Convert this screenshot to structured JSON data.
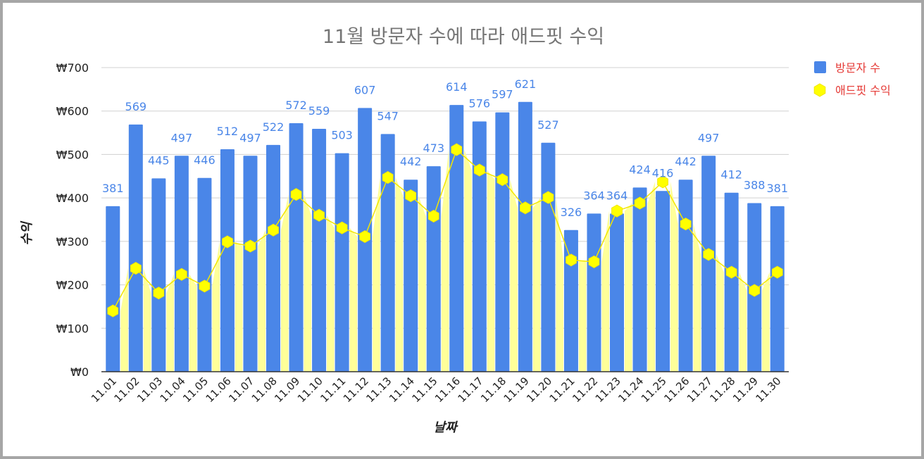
{
  "chart_data": {
    "type": "bar",
    "title": "11월 방문자 수에 따라 애드핏 수익",
    "xlabel": "날짜",
    "ylabel": "수익",
    "ylim": [
      0,
      700
    ],
    "yticks": [
      "₩0",
      "₩100",
      "₩200",
      "₩300",
      "₩400",
      "₩500",
      "₩600",
      "₩700"
    ],
    "ytick_values": [
      0,
      100,
      200,
      300,
      400,
      500,
      600,
      700
    ],
    "grid": true,
    "legend": "right",
    "categories": [
      "11.01",
      "11.02",
      "11.03",
      "11.04",
      "11.05",
      "11.06",
      "11.07",
      "11.08",
      "11.09",
      "11.10",
      "11.11",
      "11.12",
      "11.13",
      "11.14",
      "11.15",
      "11.16",
      "11.17",
      "11.18",
      "11.19",
      "11.20",
      "11.21",
      "11.22",
      "11.23",
      "11.24",
      "11.25",
      "11.26",
      "11.27",
      "11.28",
      "11.29",
      "11.30"
    ],
    "series": [
      {
        "name": "방문자 수",
        "type": "bar",
        "color": "#4a86e8",
        "values": [
          381,
          569,
          445,
          497,
          446,
          512,
          497,
          522,
          572,
          559,
          503,
          607,
          547,
          442,
          473,
          614,
          576,
          597,
          621,
          527,
          326,
          364,
          364,
          424,
          416,
          442,
          497,
          412,
          388,
          381
        ]
      },
      {
        "name": "애드핏 수익",
        "type": "area-line",
        "color": "#ffff00",
        "fill": "#ffff99",
        "line": "#f2e600",
        "values": [
          140,
          238,
          181,
          224,
          197,
          299,
          289,
          326,
          408,
          360,
          331,
          311,
          447,
          405,
          358,
          511,
          464,
          442,
          377,
          401,
          257,
          253,
          370,
          388,
          437,
          340,
          270,
          229,
          187,
          229
        ]
      }
    ]
  }
}
